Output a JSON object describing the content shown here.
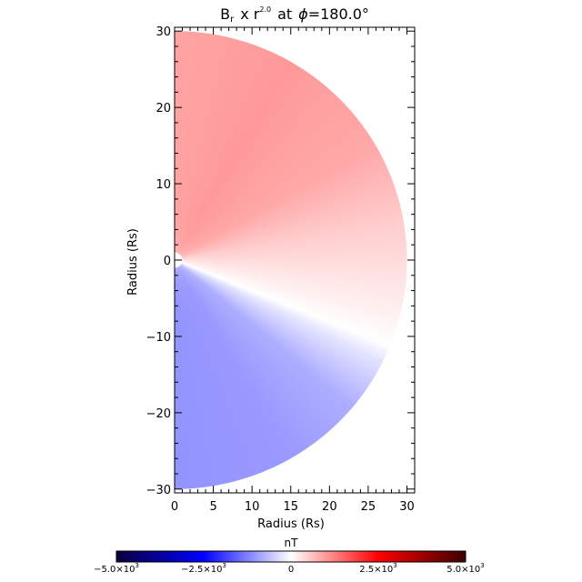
{
  "chart_data": {
    "type": "heatmap",
    "title": {
      "quantity": "B",
      "subscript": "r",
      "mid": "x r",
      "exponent": "2.0",
      "suffix": "at",
      "phi_symbol": "ϕ",
      "phi_value": "=180.0°"
    },
    "xlabel": "Radius (Rs)",
    "ylabel": "Radius (Rs)",
    "xlim": [
      0,
      31
    ],
    "ylim": [
      -30.5,
      30.5
    ],
    "x_ticks": [
      0,
      5,
      10,
      15,
      20,
      25,
      30
    ],
    "x_tick_labels": [
      "0",
      "5",
      "10",
      "15",
      "20",
      "25",
      "30"
    ],
    "y_ticks": [
      -30,
      -20,
      -10,
      0,
      10,
      20,
      30
    ],
    "y_tick_labels": [
      "−30",
      "−20",
      "−10",
      "0",
      "10",
      "20",
      "30"
    ],
    "domain": {
      "r_max": 30.0,
      "theta_range_deg": [
        -90,
        90
      ],
      "shape": "half-disk"
    },
    "neutral_line_angle_deg": -22,
    "field_samples": {
      "angle_deg": [
        90,
        60,
        30,
        10,
        0,
        -10,
        -18,
        -22,
        -26,
        -40,
        -60,
        -90
      ],
      "value": [
        900,
        1000,
        850,
        500,
        350,
        200,
        80,
        0,
        -250,
        -800,
        -1000,
        -1050
      ]
    },
    "colorbar": {
      "label": "nT",
      "min": -5000,
      "max": 5000,
      "ticks": [
        -5000,
        -2500,
        0,
        2500,
        5000
      ],
      "tick_labels": [
        {
          "base": "−5.0×10",
          "exp": "3"
        },
        {
          "base": "−2.5×10",
          "exp": "3"
        },
        {
          "base": "0",
          "exp": ""
        },
        {
          "base": "2.5×10",
          "exp": "3"
        },
        {
          "base": "5.0×10",
          "exp": "3"
        }
      ],
      "colors": [
        "#0a003c",
        "#0000ff",
        "#ffffff",
        "#ff0000",
        "#3c0000"
      ]
    }
  }
}
